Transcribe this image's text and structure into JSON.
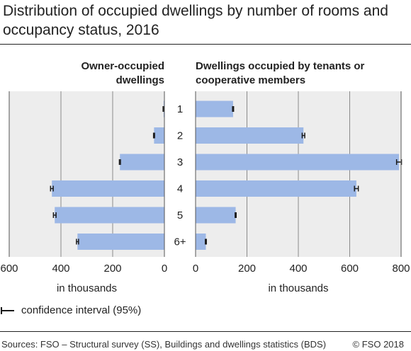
{
  "header": {
    "title": "Distribution of occupied dwellings by number of rooms and occupancy status, 2016"
  },
  "legend": {
    "label": "confidence interval (95%)"
  },
  "footer": {
    "source": "Sources: FSO – Structural survey (SS), Buildings and dwellings statistics (BDS)",
    "copyright": "© FSO 2018"
  },
  "colors": {
    "bar": "#9db8e6",
    "panel": "#ededed",
    "grid": "#8a8a8a",
    "frame": "#555555",
    "error": "#1a1a1a"
  },
  "chart_data": [
    {
      "type": "bar",
      "orientation": "horizontal",
      "direction": "reversed",
      "title": "Owner-occupied dwellings",
      "xlabel": "in thousands",
      "categories": [
        "1",
        "2",
        "3",
        "4",
        "5",
        "6+"
      ],
      "values": [
        3,
        40,
        172,
        435,
        424,
        336
      ],
      "xlim": [
        0,
        600
      ],
      "xticks": [
        600,
        400,
        200,
        0
      ],
      "grid": true,
      "error_bars": "confidence interval (95%)"
    },
    {
      "type": "bar",
      "orientation": "horizontal",
      "direction": "normal",
      "title": "Dwellings occupied by tenants or cooperative members",
      "xlabel": "in thousands",
      "categories": [
        "1",
        "2",
        "3",
        "4",
        "5",
        "6+"
      ],
      "values": [
        146,
        420,
        792,
        626,
        156,
        40
      ],
      "xlim": [
        0,
        800
      ],
      "xticks": [
        0,
        200,
        400,
        600,
        800
      ],
      "grid": true,
      "error_bars": "confidence interval (95%)"
    }
  ]
}
